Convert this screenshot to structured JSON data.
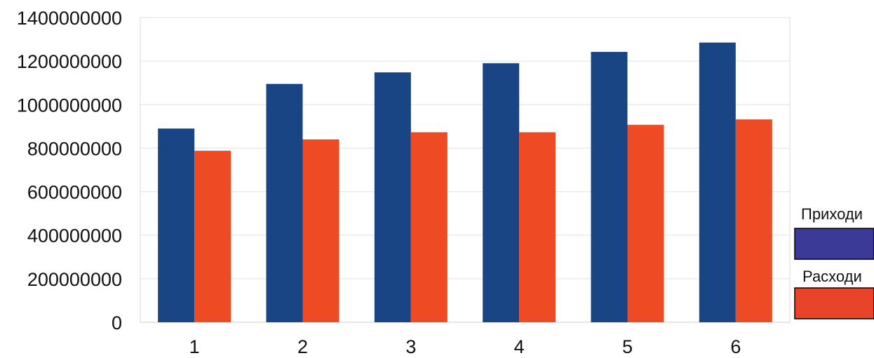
{
  "chart_data": {
    "type": "bar",
    "title": "",
    "xlabel": "",
    "ylabel": "",
    "categories": [
      "1",
      "2",
      "3",
      "4",
      "5",
      "6"
    ],
    "y_ticks": [
      "0",
      "200000000",
      "400000000",
      "600000000",
      "800000000",
      "1000000000",
      "1200000000",
      "1400000000"
    ],
    "ylim": [
      0,
      1400000000
    ],
    "grid": true,
    "legend_position": "right",
    "series": [
      {
        "name": "Приходи",
        "color": "#1a4584",
        "legend_color": "#3b3a96",
        "values": [
          890000000,
          1095000000,
          1148000000,
          1190000000,
          1242000000,
          1285000000
        ]
      },
      {
        "name": "Расходи",
        "color": "#ee4a24",
        "legend_color": "#e8442a",
        "values": [
          788000000,
          840000000,
          873000000,
          873000000,
          907000000,
          932000000
        ]
      }
    ]
  }
}
